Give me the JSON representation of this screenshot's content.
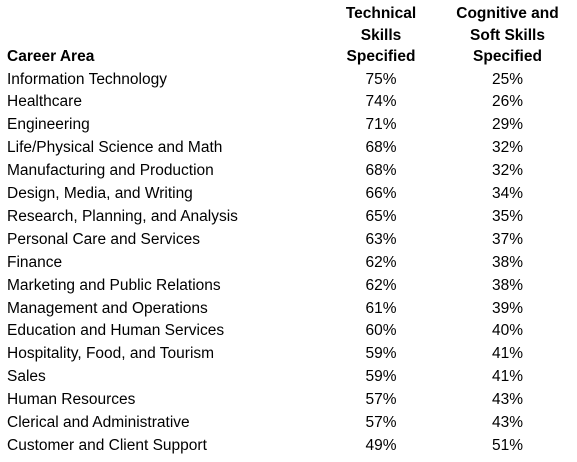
{
  "table": {
    "headers": {
      "career_area": "Career Area",
      "technical": [
        "Technical",
        "Skills",
        "Specified"
      ],
      "cognitive": [
        "Cognitive and",
        "Soft Skills",
        "Specified"
      ]
    },
    "rows": [
      {
        "area": "Information Technology",
        "technical": "75%",
        "cognitive": "25%"
      },
      {
        "area": "Healthcare",
        "technical": "74%",
        "cognitive": "26%"
      },
      {
        "area": "Engineering",
        "technical": "71%",
        "cognitive": "29%"
      },
      {
        "area": "Life/Physical Science and Math",
        "technical": "68%",
        "cognitive": "32%"
      },
      {
        "area": "Manufacturing and Production",
        "technical": "68%",
        "cognitive": "32%"
      },
      {
        "area": "Design, Media, and Writing",
        "technical": "66%",
        "cognitive": "34%"
      },
      {
        "area": "Research, Planning, and Analysis",
        "technical": "65%",
        "cognitive": "35%"
      },
      {
        "area": "Personal Care and Services",
        "technical": "63%",
        "cognitive": "37%"
      },
      {
        "area": "Finance",
        "technical": "62%",
        "cognitive": "38%"
      },
      {
        "area": "Marketing and Public Relations",
        "technical": "62%",
        "cognitive": "38%"
      },
      {
        "area": "Management and Operations",
        "technical": "61%",
        "cognitive": "39%"
      },
      {
        "area": "Education and Human Services",
        "technical": "60%",
        "cognitive": "40%"
      },
      {
        "area": "Hospitality, Food, and Tourism",
        "technical": "59%",
        "cognitive": "41%"
      },
      {
        "area": "Sales",
        "technical": "59%",
        "cognitive": "41%"
      },
      {
        "area": "Human Resources",
        "technical": "57%",
        "cognitive": "43%"
      },
      {
        "area": "Clerical and Administrative",
        "technical": "57%",
        "cognitive": "43%"
      },
      {
        "area": "Customer and Client Support",
        "technical": "49%",
        "cognitive": "51%"
      }
    ]
  }
}
